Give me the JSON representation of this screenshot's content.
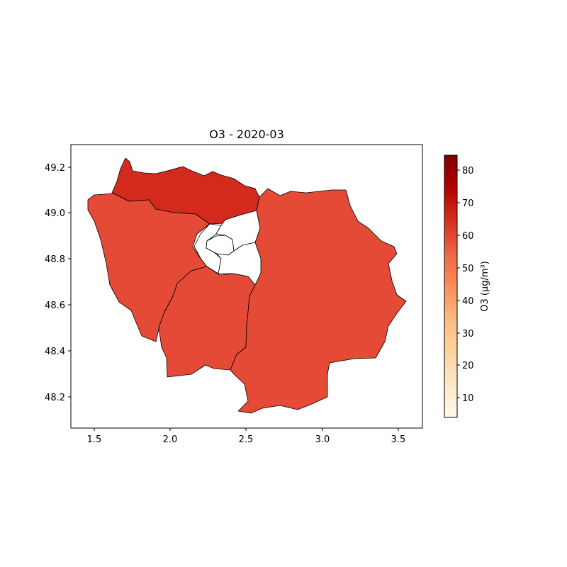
{
  "chart_data": {
    "type": "choropleth",
    "title": "O3 - 2020-03",
    "x_ticks": [
      "1.5",
      "2.0",
      "2.5",
      "3.0",
      "3.5"
    ],
    "y_ticks": [
      "48.2",
      "48.4",
      "48.6",
      "48.8",
      "49.0",
      "49.2"
    ],
    "xlim": [
      1.35,
      3.67
    ],
    "ylim": [
      48.06,
      49.3
    ],
    "colorbar": {
      "label": "O3 (µg/m³)",
      "ticks": [
        "10",
        "20",
        "30",
        "40",
        "50",
        "60",
        "70",
        "80"
      ],
      "range": [
        3.6,
        84.4
      ],
      "colormap": "OrRd"
    },
    "regions": [
      {
        "id": "val-d-oise",
        "value": 72,
        "color": "#d42a1d"
      },
      {
        "id": "yvelines",
        "value": 63,
        "color": "#e44a35"
      },
      {
        "id": "essonne",
        "value": 63,
        "color": "#e44a35"
      },
      {
        "id": "seine-et-marne",
        "value": 63,
        "color": "#e44a35"
      },
      {
        "id": "hauts-de-seine",
        "value": null,
        "color": "#ffffff"
      },
      {
        "id": "paris",
        "value": null,
        "color": "#ffffff"
      },
      {
        "id": "seine-saint-denis",
        "value": null,
        "color": "#ffffff"
      },
      {
        "id": "val-de-marne",
        "value": null,
        "color": "#ffffff"
      }
    ]
  }
}
